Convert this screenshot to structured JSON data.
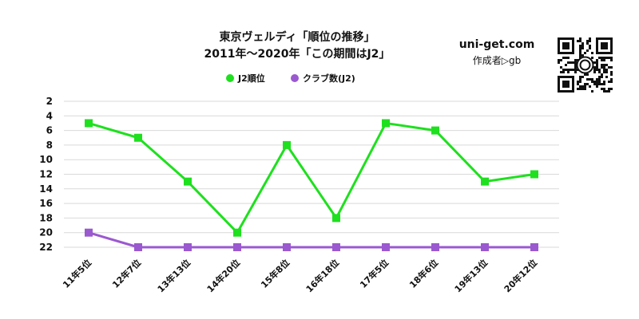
{
  "header": {
    "title_line1": "東京ヴェルディ「順位の推移」",
    "title_line2": "2011年～2020年「この期間はJ2」",
    "brand": "uni-get.com",
    "author": "作成者▷gb"
  },
  "colors": {
    "j2_rank": "#1ee01e",
    "clubs": "#9b59d0",
    "grid": "#d9d9d9"
  },
  "chart_data": {
    "type": "line",
    "categories": [
      "11年5位",
      "12年7位",
      "13年13位",
      "14年20位",
      "15年8位",
      "16年18位",
      "17年5位",
      "18年6位",
      "19年13位",
      "20年12位"
    ],
    "series": [
      {
        "name": "J2順位",
        "values": [
          5,
          7,
          13,
          20,
          8,
          18,
          5,
          6,
          13,
          12
        ]
      },
      {
        "name": "クラブ数(J2)",
        "values": [
          20,
          22,
          22,
          22,
          22,
          22,
          22,
          22,
          22,
          22
        ]
      }
    ],
    "y_ticks": [
      2,
      4,
      6,
      8,
      10,
      12,
      14,
      16,
      18,
      20,
      22
    ],
    "ylim": [
      2,
      22
    ],
    "y_inverted": true,
    "grid": true,
    "legend_position": "top-center"
  }
}
